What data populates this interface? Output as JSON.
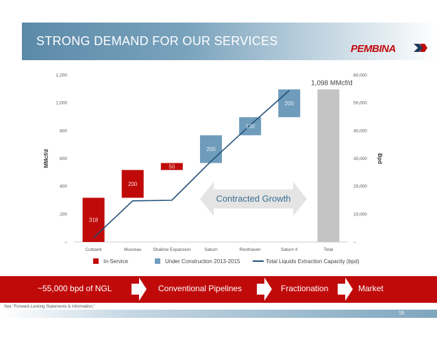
{
  "slide": {
    "title": "STRONG DEMAND FOR OUR SERVICES",
    "logo_text": "PEMBINA",
    "disclaimer": "See \"Forward-Looking Statements & Information.\"",
    "page_number": "19"
  },
  "colors": {
    "in_service": "#c00a0a",
    "under_construction": "#6f9cbb",
    "total": "#c4c4c4",
    "line": "#1f4e79",
    "header": "#5b8aa8",
    "flow_band": "#c00a0a"
  },
  "chart_data": {
    "type": "bar",
    "subtype": "waterfall-with-line",
    "categories": [
      "Cutbank",
      "Musreau",
      "Shallow Expansion",
      "Saturn",
      "Resthaven",
      "Saturn II",
      "Total"
    ],
    "series": [
      {
        "name": "In-Service",
        "color": "#c00a0a",
        "values": [
          318,
          200,
          50,
          0,
          0,
          0,
          0
        ],
        "bases": [
          0,
          318,
          518,
          0,
          0,
          0,
          0
        ]
      },
      {
        "name": "Under Construction 2013-2015",
        "color": "#6f9cbb",
        "values": [
          0,
          0,
          0,
          200,
          130,
          200,
          0
        ],
        "bases": [
          0,
          0,
          0,
          568,
          768,
          898,
          0
        ]
      },
      {
        "name": "Total",
        "values": [
          0,
          0,
          0,
          0,
          0,
          0,
          1098
        ],
        "bases": [
          0,
          0,
          0,
          0,
          0,
          0,
          0
        ]
      }
    ],
    "bar_labels": [
      "318",
      "200",
      "50",
      "200",
      "130",
      "200",
      ""
    ],
    "total_annotation": "1,098 MMcf/d",
    "line_series": {
      "name": "Total Liquids Extraction Capacity (bpd)",
      "x": [
        "Cutbank",
        "Musreau",
        "Shallow Expansion",
        "Saturn",
        "Resthaven",
        "Saturn II"
      ],
      "values": [
        1500,
        14800,
        15000,
        29000,
        42000,
        54500
      ]
    },
    "ylabel_left": "MMcf/d",
    "ylabel_right": "Bpd",
    "ylim_left": [
      0,
      1200
    ],
    "ylim_right": [
      0,
      60000
    ],
    "yticks_left": [
      "–",
      "200",
      "400",
      "600",
      "800",
      "1,000",
      "1,200"
    ],
    "yticks_right": [
      "–",
      "10,000",
      "20,000",
      "30,000",
      "40,000",
      "50,000",
      "60,000"
    ],
    "annotation": "Contracted Growth",
    "legend": [
      "In-Service",
      "Under Construction 2013-2015",
      "Total Liquids Extraction Capacity (bpd)"
    ],
    "legend_position": "bottom",
    "grid": false
  },
  "flow": {
    "items": [
      "~55,000 bpd of NGL",
      "Conventional Pipelines",
      "Fractionation",
      "Market"
    ],
    "arrow_icon": "right-arrow-icon"
  }
}
